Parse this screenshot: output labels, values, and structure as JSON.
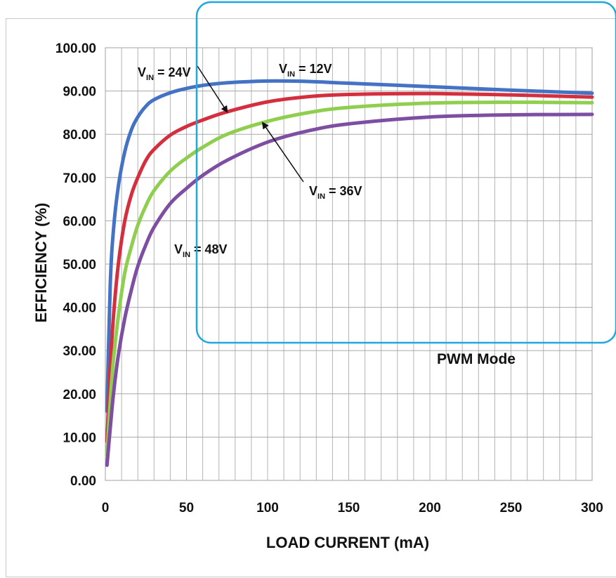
{
  "chart_data": {
    "type": "line",
    "title": "",
    "xlabel": "LOAD CURRENT (mA)",
    "ylabel": "EFFICIENCY (%)",
    "xlim": [
      0,
      300
    ],
    "ylim": [
      0,
      100
    ],
    "x_ticks": [
      "0",
      "50",
      "100",
      "150",
      "200",
      "250",
      "300"
    ],
    "y_ticks": [
      "0.00",
      "10.00",
      "20.00",
      "30.00",
      "40.00",
      "50.00",
      "60.00",
      "70.00",
      "80.00",
      "90.00",
      "100.00"
    ],
    "grid": true,
    "mode_label": "PWM Mode",
    "series": [
      {
        "name": "VIN = 12V",
        "label_main": "V",
        "label_sub": "IN",
        "label_rest": " = 12V",
        "color": "#4472c4",
        "x": [
          1,
          3,
          5,
          8,
          12,
          16,
          20,
          25,
          30,
          40,
          50,
          60,
          75,
          100,
          125,
          150,
          200,
          250,
          300
        ],
        "y": [
          16,
          45,
          58,
          68,
          76,
          81,
          84,
          86.5,
          88,
          89.6,
          90.6,
          91.3,
          91.9,
          92.3,
          92.2,
          91.8,
          91,
          90.2,
          89.5
        ]
      },
      {
        "name": "VIN = 24V",
        "label_main": "V",
        "label_sub": "IN",
        "label_rest": " = 24V",
        "color": "#d32f3f",
        "x": [
          1,
          3,
          5,
          8,
          12,
          16,
          20,
          25,
          30,
          40,
          50,
          60,
          75,
          100,
          125,
          150,
          200,
          250,
          300
        ],
        "y": [
          9,
          26,
          38,
          50,
          60,
          66,
          70,
          74,
          76.5,
          79.8,
          81.8,
          83.3,
          85.2,
          87.5,
          88.7,
          89.2,
          89.4,
          89.1,
          88.6
        ]
      },
      {
        "name": "VIN = 36V",
        "label_main": "V",
        "label_sub": "IN",
        "label_rest": " = 36V",
        "color": "#8fce4f",
        "x": [
          1,
          3,
          5,
          8,
          12,
          16,
          20,
          25,
          30,
          40,
          50,
          60,
          75,
          100,
          125,
          150,
          200,
          250,
          300
        ],
        "y": [
          6,
          18,
          28,
          38,
          48,
          54,
          59,
          63.5,
          67,
          71.5,
          74.5,
          77,
          80,
          83,
          85,
          86.2,
          87.2,
          87.4,
          87.3
        ]
      },
      {
        "name": "VIN = 48V",
        "label_main": "V",
        "label_sub": "IN",
        "label_rest": " = 48V",
        "color": "#7e4ea3",
        "x": [
          1,
          3,
          5,
          8,
          12,
          16,
          20,
          25,
          30,
          40,
          50,
          60,
          75,
          100,
          125,
          150,
          200,
          250,
          300
        ],
        "y": [
          3.5,
          12,
          20,
          29,
          37.5,
          44,
          49.5,
          54.5,
          58.5,
          64,
          67.5,
          70.5,
          74,
          78.2,
          80.8,
          82.4,
          84,
          84.5,
          84.6
        ]
      }
    ],
    "annotations": [
      {
        "series": 0,
        "at_x": 110
      },
      {
        "series": 1,
        "at_x": 75
      },
      {
        "series": 2,
        "at_x": 97
      },
      {
        "series": 3,
        "at_x": 58
      }
    ]
  }
}
